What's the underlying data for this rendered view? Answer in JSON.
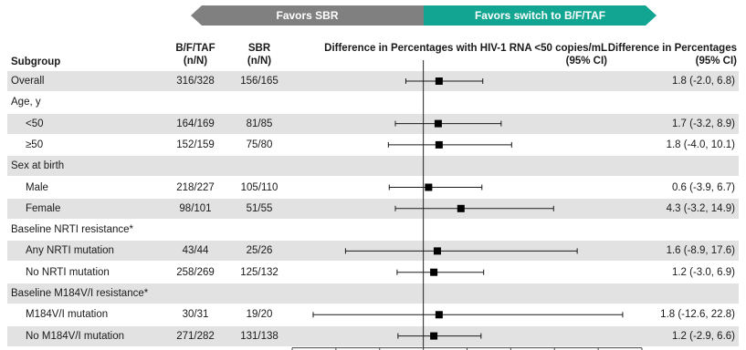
{
  "banner": {
    "left_label": "Favors SBR",
    "right_label": "Favors switch to B/F/TAF"
  },
  "columns": {
    "subgroup": "Subgroup",
    "bft": "B/F/TAF",
    "bft_unit": "(n/N)",
    "sbr": "SBR",
    "sbr_unit": "(n/N)",
    "diff_plot": "Difference in Percentages with HIV-1 RNA <50 copies/mL",
    "diff_plot_ci": "(95% CI)",
    "diff_ci": "Difference in Percentages",
    "diff_ci_unit": "(95% CI)"
  },
  "rows": [
    {
      "label": "Overall",
      "bft": "316/328",
      "sbr": "156/165",
      "ci": "1.8 (-2.0, 6.8)"
    },
    {
      "label": "Age, y",
      "bft": "",
      "sbr": "",
      "ci": ""
    },
    {
      "label": "<50",
      "bft": "164/169",
      "sbr": "81/85",
      "ci": "1.7 (-3.2, 8.9)"
    },
    {
      "label": "≥50",
      "bft": "152/159",
      "sbr": "75/80",
      "ci": "1.8 (-4.0, 10.1)"
    },
    {
      "label": "Sex at birth",
      "bft": "",
      "sbr": "",
      "ci": ""
    },
    {
      "label": "Male",
      "bft": "218/227",
      "sbr": "105/110",
      "ci": "0.6 (-3.9, 6.7)"
    },
    {
      "label": "Female",
      "bft": "98/101",
      "sbr": "51/55",
      "ci": "4.3 (-3.2, 14.9)"
    },
    {
      "label": "Baseline NRTI resistance*",
      "bft": "",
      "sbr": "",
      "ci": ""
    },
    {
      "label": "Any NRTI mutation",
      "bft": "43/44",
      "sbr": "25/26",
      "ci": "1.6 (-8.9, 17.6)"
    },
    {
      "label": "No NRTI mutation",
      "bft": "258/269",
      "sbr": "125/132",
      "ci": "1.2 (-3.0, 6.9)"
    },
    {
      "label": "Baseline M184V/I resistance*",
      "bft": "",
      "sbr": "",
      "ci": ""
    },
    {
      "label": "M184V/I mutation",
      "bft": "30/31",
      "sbr": "19/20",
      "ci": "1.8 (-12.6, 22.8)"
    },
    {
      "label": "No M184V/I mutation",
      "bft": "271/282",
      "sbr": "131/138",
      "ci": "1.2 (-2.9, 6.6)"
    }
  ],
  "chart_data": {
    "type": "forest",
    "xlim": [
      -15,
      25
    ],
    "xticks": [
      "-15",
      "-10",
      "-5",
      "0",
      "5",
      "10",
      "15",
      "20",
      "25"
    ],
    "reference_line": 0,
    "points": [
      {
        "row": 0,
        "est": 1.8,
        "lo": -2.0,
        "hi": 6.8
      },
      {
        "row": 2,
        "est": 1.7,
        "lo": -3.2,
        "hi": 8.9
      },
      {
        "row": 3,
        "est": 1.8,
        "lo": -4.0,
        "hi": 10.1
      },
      {
        "row": 5,
        "est": 0.6,
        "lo": -3.9,
        "hi": 6.7
      },
      {
        "row": 6,
        "est": 4.3,
        "lo": -3.2,
        "hi": 14.9
      },
      {
        "row": 8,
        "est": 1.6,
        "lo": -8.9,
        "hi": 17.6
      },
      {
        "row": 9,
        "est": 1.2,
        "lo": -3.0,
        "hi": 6.9
      },
      {
        "row": 11,
        "est": 1.8,
        "lo": -12.6,
        "hi": 22.8
      },
      {
        "row": 12,
        "est": 1.2,
        "lo": -2.9,
        "hi": 6.6
      }
    ]
  }
}
